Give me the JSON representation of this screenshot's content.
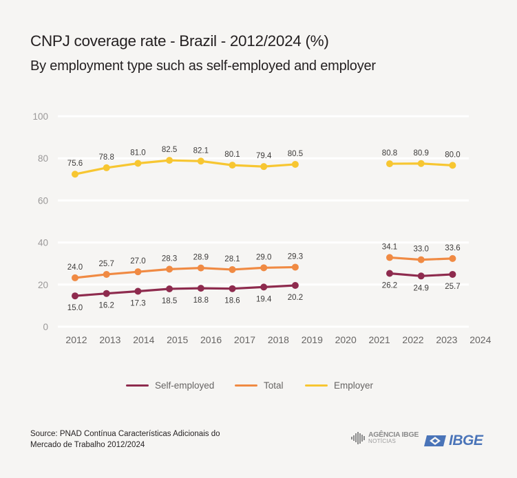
{
  "header": {
    "title": "CNPJ coverage rate - Brazil - 2012/2024 (%)",
    "subtitle": "By employment type such as self-employed and employer"
  },
  "chart_data": {
    "type": "line",
    "title": "CNPJ coverage rate - Brazil - 2012/2024 (%)",
    "subtitle": "By employment type such as self-employed and employer",
    "xlabel": "",
    "ylabel": "",
    "ylim": [
      0,
      100
    ],
    "yticks": [
      0,
      20,
      40,
      60,
      80,
      100
    ],
    "grid": true,
    "legend_position": "bottom-center",
    "categories": [
      "2012",
      "2013",
      "2014",
      "2015",
      "2016",
      "2017",
      "2018",
      "2019",
      "2020",
      "2021",
      "2022",
      "2023",
      "2024"
    ],
    "point_labels_x": [
      "2012",
      "2013",
      "2014",
      "2015",
      "2016",
      "2017",
      "2018",
      "2019",
      "2020",
      "2021",
      "2022",
      "2023",
      "2024"
    ],
    "series": [
      {
        "name": "Self-employed",
        "color": "#8e2b4e",
        "label_position": "below",
        "values": [
          15.0,
          16.2,
          17.3,
          18.5,
          18.8,
          18.6,
          19.4,
          20.2,
          null,
          null,
          26.2,
          24.9,
          25.7
        ]
      },
      {
        "name": "Total",
        "color": "#f08a43",
        "label_position": "above",
        "values": [
          24.0,
          25.7,
          27.0,
          28.3,
          28.9,
          28.1,
          29.0,
          29.3,
          null,
          null,
          34.1,
          33.0,
          33.6
        ]
      },
      {
        "name": "Employer",
        "color": "#f7c631",
        "label_position": "above",
        "values": [
          75.6,
          78.8,
          81.0,
          82.5,
          82.1,
          80.1,
          79.4,
          80.5,
          null,
          null,
          80.8,
          80.9,
          80.0
        ]
      }
    ],
    "note": "Data points are plotted at 13 evenly spaced slots (2 empty slots for the gap); x tick labels 2012–2024 are shown beneath."
  },
  "legend": [
    {
      "label": "Self-employed",
      "color": "#8e2b4e"
    },
    {
      "label": "Total",
      "color": "#f08a43"
    },
    {
      "label": "Employer",
      "color": "#f7c631"
    }
  ],
  "footer": {
    "source": "Source: PNAD Contínua Características Adicionais do Mercado de Trabalho 2012/2024",
    "logo_agencia_top": "AGÊNCIA IBGE",
    "logo_agencia_bottom": "NOTÍCIAS",
    "logo_ibge": "IBGE"
  }
}
